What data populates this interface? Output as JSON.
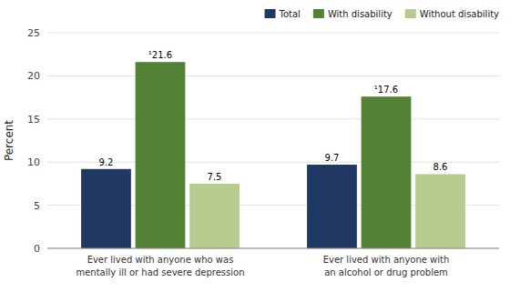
{
  "chart_data": {
    "type": "bar",
    "ylabel": "Percent",
    "categories": [
      "Ever lived with anyone who was\nmentally ill or had severe depression",
      "Ever lived with anyone with\nan alcohol or drug problem"
    ],
    "series": [
      {
        "name": "Total",
        "color": "#1f3864",
        "values": [
          9.2,
          9.7
        ]
      },
      {
        "name": "With disability",
        "color": "#538135",
        "values": [
          21.6,
          17.6
        ],
        "value_labels": [
          "¹21.6",
          "¹17.6"
        ]
      },
      {
        "name": "Without disability",
        "color": "#b5cc8e",
        "values": [
          7.5,
          8.6
        ]
      }
    ],
    "ylim": [
      0,
      25
    ],
    "yticks": [
      0,
      5,
      10,
      15,
      20,
      25
    ],
    "grid": true,
    "legend": "upper right",
    "data_labels": true
  }
}
